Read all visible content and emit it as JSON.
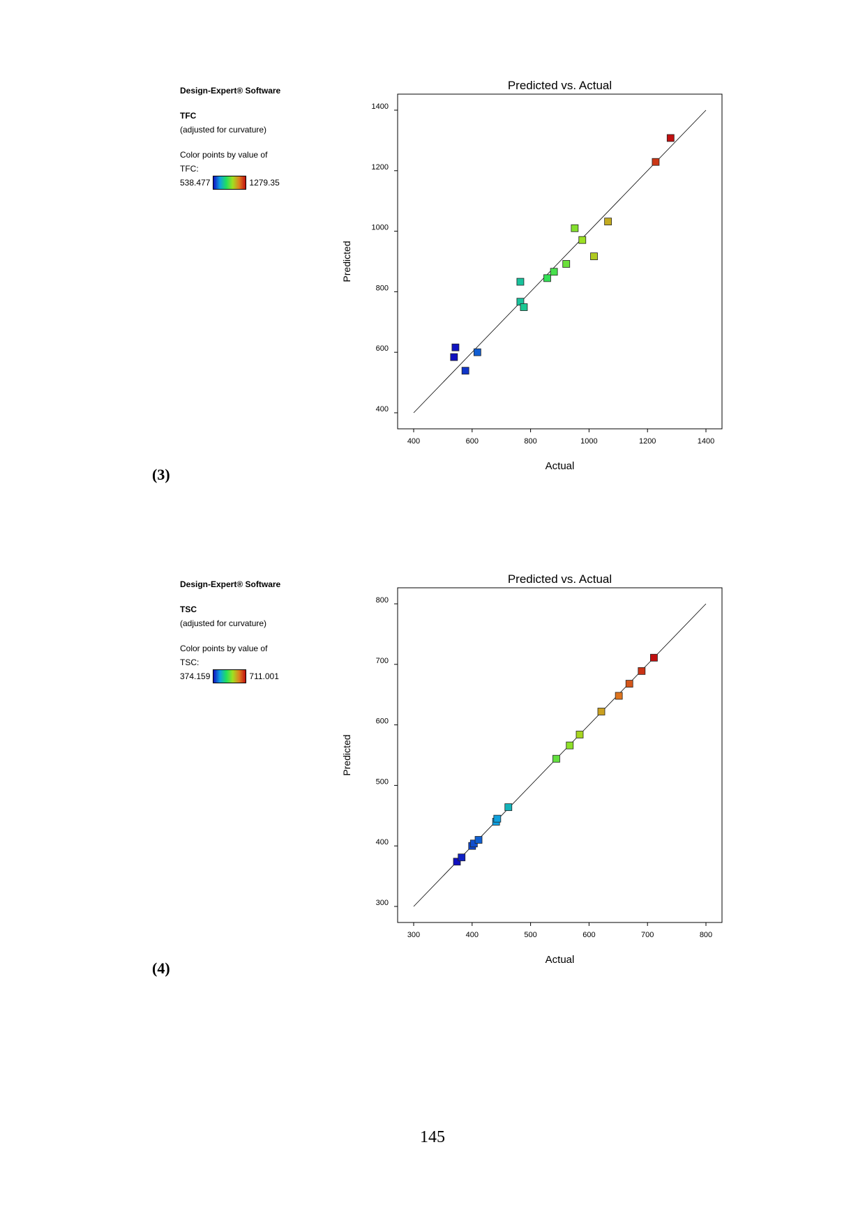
{
  "panels": [
    {
      "label": "(3)",
      "software": "Design-Expert® Software",
      "response": "TFC",
      "adjusted": "(adjusted for curvature)",
      "color_by": "Color points by value of",
      "color_by_var": "TFC:",
      "color_min": "538.477",
      "color_max": "1279.35"
    },
    {
      "label": "(4)",
      "software": "Design-Expert® Software",
      "response": "TSC",
      "adjusted": "(adjusted for curvature)",
      "color_by": "Color points by value of",
      "color_by_var": "TSC:",
      "color_min": "374.159",
      "color_max": "711.001"
    }
  ],
  "page_number": "145",
  "chart_data": [
    {
      "type": "scatter",
      "title": "Predicted vs. Actual",
      "xlabel": "Actual",
      "ylabel": "Predicted",
      "xlim": [
        400,
        1400
      ],
      "ylim": [
        400,
        1400
      ],
      "xticks": [
        400,
        600,
        800,
        1000,
        1200,
        1400
      ],
      "yticks": [
        400,
        600,
        800,
        1000,
        1200,
        1400
      ],
      "reference_line": "y = x",
      "color_range": [
        538.477,
        1279.35
      ],
      "points": [
        {
          "x": 538,
          "y": 584
        },
        {
          "x": 543,
          "y": 616
        },
        {
          "x": 577,
          "y": 539
        },
        {
          "x": 618,
          "y": 600
        },
        {
          "x": 765,
          "y": 833
        },
        {
          "x": 765,
          "y": 767
        },
        {
          "x": 777,
          "y": 749
        },
        {
          "x": 857,
          "y": 845
        },
        {
          "x": 880,
          "y": 866
        },
        {
          "x": 922,
          "y": 892
        },
        {
          "x": 951,
          "y": 1010
        },
        {
          "x": 977,
          "y": 971
        },
        {
          "x": 1017,
          "y": 917
        },
        {
          "x": 1065,
          "y": 1032
        },
        {
          "x": 1228,
          "y": 1229
        },
        {
          "x": 1279,
          "y": 1308
        }
      ]
    },
    {
      "type": "scatter",
      "title": "Predicted vs. Actual",
      "xlabel": "Actual",
      "ylabel": "Predicted",
      "xlim": [
        300,
        800
      ],
      "ylim": [
        300,
        800
      ],
      "xticks": [
        300,
        400,
        500,
        600,
        700,
        800
      ],
      "yticks": [
        300,
        400,
        500,
        600,
        700,
        800
      ],
      "reference_line": "y = x",
      "color_range": [
        374.159,
        711.001
      ],
      "points": [
        {
          "x": 374,
          "y": 374
        },
        {
          "x": 382,
          "y": 381
        },
        {
          "x": 400,
          "y": 400
        },
        {
          "x": 403,
          "y": 404
        },
        {
          "x": 411,
          "y": 410
        },
        {
          "x": 441,
          "y": 440
        },
        {
          "x": 443,
          "y": 445
        },
        {
          "x": 462,
          "y": 464
        },
        {
          "x": 544,
          "y": 544
        },
        {
          "x": 567,
          "y": 566
        },
        {
          "x": 584,
          "y": 584
        },
        {
          "x": 621,
          "y": 622
        },
        {
          "x": 651,
          "y": 648
        },
        {
          "x": 669,
          "y": 668
        },
        {
          "x": 690,
          "y": 689
        },
        {
          "x": 711,
          "y": 711
        }
      ]
    }
  ]
}
